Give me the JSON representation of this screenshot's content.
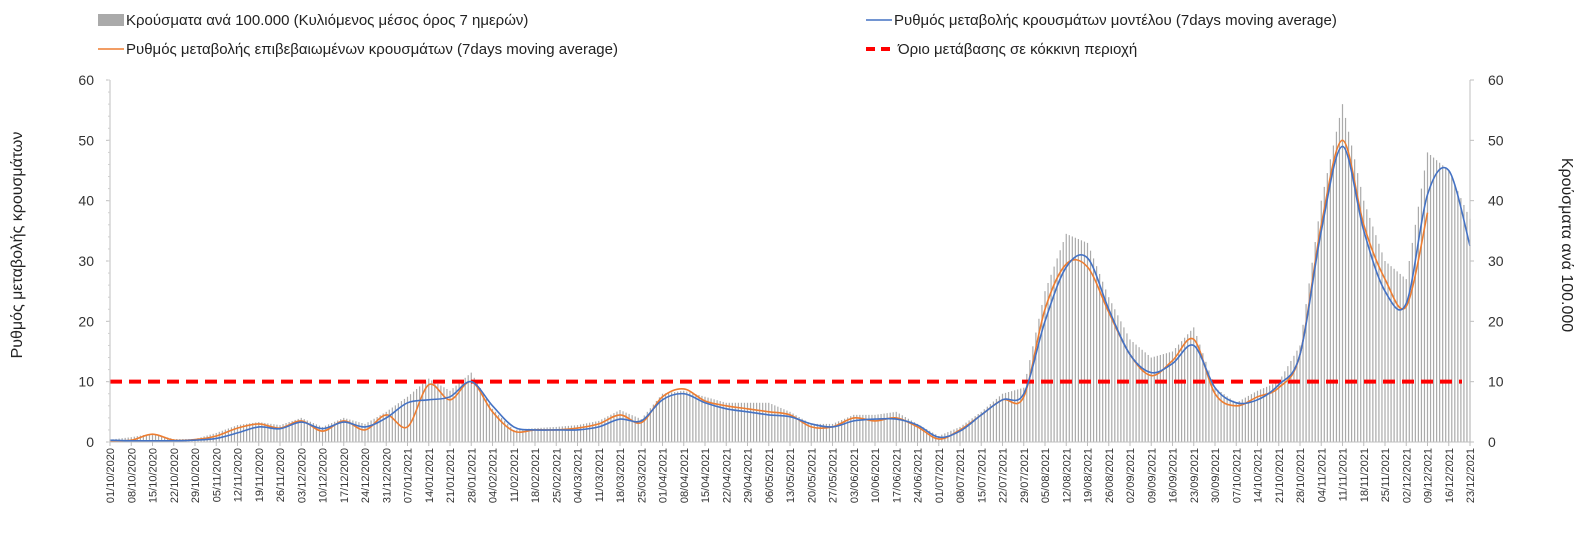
{
  "chart_data": {
    "type": "bar",
    "ylabel_left": "Ρυθμός μεταβολής κρουσμάτων",
    "ylabel_right": "Κρούσματα ανά 100.000",
    "ylim": [
      0,
      60
    ],
    "y_ticks": [
      0,
      10,
      20,
      30,
      40,
      50,
      60
    ],
    "x_range": [
      "2020-10-01",
      "2021-12-23"
    ],
    "x_tick_labels": [
      "01/10/2020",
      "08/10/2020",
      "15/10/2020",
      "22/10/2020",
      "29/10/2020",
      "05/11/2020",
      "12/11/2020",
      "19/11/2020",
      "26/11/2020",
      "03/12/2020",
      "10/12/2020",
      "17/12/2020",
      "24/12/2020",
      "31/12/2020",
      "07/01/2021",
      "14/01/2021",
      "21/01/2021",
      "28/01/2021",
      "04/02/2021",
      "11/02/2021",
      "18/02/2021",
      "25/02/2021",
      "04/03/2021",
      "11/03/2021",
      "18/03/2021",
      "25/03/2021",
      "01/04/2021",
      "08/04/2021",
      "15/04/2021",
      "22/04/2021",
      "29/04/2021",
      "06/05/2021",
      "13/05/2021",
      "20/05/2021",
      "27/05/2021",
      "03/06/2021",
      "10/06/2021",
      "17/06/2021",
      "24/06/2021",
      "01/07/2021",
      "08/07/2021",
      "15/07/2021",
      "22/07/2021",
      "29/07/2021",
      "05/08/2021",
      "12/08/2021",
      "19/08/2021",
      "26/08/2021",
      "02/09/2021",
      "09/09/2021",
      "16/09/2021",
      "23/09/2021",
      "30/09/2021",
      "07/10/2021",
      "14/10/2021",
      "21/10/2021",
      "28/10/2021",
      "04/11/2021",
      "11/11/2021",
      "18/11/2021",
      "25/11/2021",
      "02/12/2021",
      "09/12/2021",
      "16/12/2021",
      "23/12/2021"
    ],
    "grid": false,
    "legend_position": "top",
    "threshold": 10,
    "series": [
      {
        "name": "Κρούσματα ανά 100.000 (Κυλιόμενος μέσος όρος 7 ημερών)",
        "kind": "bar",
        "color": "#aaaaaa",
        "x": [
          "2020-10-01",
          "2020-10-08",
          "2020-10-15",
          "2020-10-22",
          "2020-10-29",
          "2020-11-05",
          "2020-11-12",
          "2020-11-19",
          "2020-11-26",
          "2020-12-03",
          "2020-12-10",
          "2020-12-17",
          "2020-12-24",
          "2020-12-31",
          "2021-01-07",
          "2021-01-14",
          "2021-01-21",
          "2021-01-28",
          "2021-02-04",
          "2021-02-11",
          "2021-02-18",
          "2021-02-25",
          "2021-03-04",
          "2021-03-11",
          "2021-03-18",
          "2021-03-25",
          "2021-04-01",
          "2021-04-08",
          "2021-04-15",
          "2021-04-22",
          "2021-04-29",
          "2021-05-06",
          "2021-05-13",
          "2021-05-20",
          "2021-05-27",
          "2021-06-03",
          "2021-06-10",
          "2021-06-17",
          "2021-06-24",
          "2021-07-01",
          "2021-07-08",
          "2021-07-15",
          "2021-07-22",
          "2021-07-29",
          "2021-08-05",
          "2021-08-12",
          "2021-08-19",
          "2021-08-26",
          "2021-09-02",
          "2021-09-09",
          "2021-09-16",
          "2021-09-23",
          "2021-09-30",
          "2021-10-07",
          "2021-10-14",
          "2021-10-21",
          "2021-10-28",
          "2021-11-04",
          "2021-11-11",
          "2021-11-18",
          "2021-11-25",
          "2021-12-02",
          "2021-12-09",
          "2021-12-16",
          "2021-12-23"
        ],
        "values": [
          0.4,
          0.8,
          1.4,
          0.5,
          0.5,
          1.5,
          2.8,
          3.3,
          2.8,
          4.0,
          2.5,
          4.0,
          3.0,
          5.0,
          7.5,
          10.5,
          8.5,
          11.5,
          5.5,
          2.0,
          2.3,
          2.5,
          2.8,
          3.5,
          5.3,
          3.8,
          8.0,
          8.5,
          7.5,
          6.5,
          6.5,
          6.5,
          5.0,
          3.0,
          3.0,
          4.5,
          4.5,
          5.0,
          3.0,
          1.0,
          2.5,
          5.0,
          8.0,
          9.0,
          25.0,
          34.5,
          33.0,
          24.0,
          17.0,
          14.0,
          15.0,
          19.0,
          9.0,
          6.5,
          8.5,
          10.0,
          16.0,
          40.0,
          56.0,
          40.0,
          30.0,
          27.0,
          48.0,
          45.0,
          37.0
        ]
      },
      {
        "name": "Ρυθμός μεταβολής επιβεβαιωμένων κρουσμάτων (7days moving average)",
        "kind": "line",
        "color": "#ed7d31",
        "x": [
          "2020-10-01",
          "2020-10-08",
          "2020-10-15",
          "2020-10-22",
          "2020-10-29",
          "2020-11-05",
          "2020-11-12",
          "2020-11-19",
          "2020-11-26",
          "2020-12-03",
          "2020-12-10",
          "2020-12-17",
          "2020-12-24",
          "2020-12-31",
          "2021-01-07",
          "2021-01-14",
          "2021-01-21",
          "2021-01-28",
          "2021-02-04",
          "2021-02-11",
          "2021-02-18",
          "2021-02-25",
          "2021-03-04",
          "2021-03-11",
          "2021-03-18",
          "2021-03-25",
          "2021-04-01",
          "2021-04-08",
          "2021-04-15",
          "2021-04-22",
          "2021-04-29",
          "2021-05-06",
          "2021-05-13",
          "2021-05-20",
          "2021-05-27",
          "2021-06-03",
          "2021-06-10",
          "2021-06-17",
          "2021-06-24",
          "2021-07-01",
          "2021-07-08",
          "2021-07-15",
          "2021-07-22",
          "2021-07-29",
          "2021-08-05",
          "2021-08-12",
          "2021-08-19",
          "2021-08-26",
          "2021-09-02",
          "2021-09-09",
          "2021-09-16",
          "2021-09-23",
          "2021-09-30",
          "2021-10-07",
          "2021-10-14",
          "2021-10-21",
          "2021-10-28",
          "2021-11-04",
          "2021-11-11",
          "2021-11-18",
          "2021-11-25",
          "2021-12-02",
          "2021-12-09",
          "2021-12-16",
          "2021-12-23"
        ],
        "values": [
          0.2,
          0.3,
          1.3,
          0.3,
          0.4,
          1.0,
          2.3,
          3.0,
          2.3,
          3.5,
          1.8,
          3.5,
          2.0,
          4.5,
          2.5,
          9.5,
          7.0,
          10.0,
          5.0,
          1.8,
          2.0,
          2.0,
          2.3,
          3.0,
          4.5,
          3.2,
          7.5,
          8.8,
          6.8,
          6.0,
          5.5,
          5.0,
          4.5,
          2.5,
          2.5,
          4.0,
          3.5,
          4.0,
          2.5,
          0.5,
          2.0,
          4.5,
          7.0,
          7.5,
          22.0,
          29.5,
          29.0,
          21.5,
          14.5,
          11.0,
          13.5,
          17.0,
          8.0,
          6.0,
          7.5,
          9.0,
          14.5,
          36.0,
          50.0,
          36.0,
          27.0,
          22.5,
          38.0,
          null,
          null
        ]
      },
      {
        "name": "Ρυθμός μεταβολής κρουσμάτων μοντέλου (7days moving average)",
        "kind": "line",
        "color": "#4472c4",
        "x": [
          "2020-10-01",
          "2020-10-08",
          "2020-10-15",
          "2020-10-22",
          "2020-10-29",
          "2020-11-05",
          "2020-11-12",
          "2020-11-19",
          "2020-11-26",
          "2020-12-03",
          "2020-12-10",
          "2020-12-17",
          "2020-12-24",
          "2020-12-31",
          "2021-01-07",
          "2021-01-14",
          "2021-01-21",
          "2021-01-28",
          "2021-02-04",
          "2021-02-11",
          "2021-02-18",
          "2021-02-25",
          "2021-03-04",
          "2021-03-11",
          "2021-03-18",
          "2021-03-25",
          "2021-04-01",
          "2021-04-08",
          "2021-04-15",
          "2021-04-22",
          "2021-04-29",
          "2021-05-06",
          "2021-05-13",
          "2021-05-20",
          "2021-05-27",
          "2021-06-03",
          "2021-06-10",
          "2021-06-17",
          "2021-06-24",
          "2021-07-01",
          "2021-07-08",
          "2021-07-15",
          "2021-07-22",
          "2021-07-29",
          "2021-08-05",
          "2021-08-12",
          "2021-08-19",
          "2021-08-26",
          "2021-09-02",
          "2021-09-09",
          "2021-09-16",
          "2021-09-23",
          "2021-09-30",
          "2021-10-07",
          "2021-10-14",
          "2021-10-21",
          "2021-10-28",
          "2021-11-04",
          "2021-11-11",
          "2021-11-18",
          "2021-11-25",
          "2021-12-02",
          "2021-12-09",
          "2021-12-16",
          "2021-12-23"
        ],
        "values": [
          0.3,
          0.2,
          0.2,
          0.2,
          0.3,
          0.6,
          1.5,
          2.5,
          2.2,
          3.3,
          2.2,
          3.3,
          2.5,
          4.0,
          6.5,
          7.0,
          7.5,
          10.0,
          6.0,
          2.5,
          2.0,
          2.0,
          2.0,
          2.5,
          3.8,
          3.5,
          7.0,
          8.0,
          6.5,
          5.5,
          5.0,
          4.5,
          4.2,
          3.0,
          2.5,
          3.5,
          3.8,
          3.8,
          2.8,
          0.8,
          1.8,
          4.5,
          7.0,
          8.0,
          20.0,
          29.0,
          30.5,
          22.0,
          14.5,
          11.5,
          13.0,
          16.0,
          9.0,
          6.5,
          7.0,
          9.5,
          14.5,
          35.0,
          49.0,
          35.0,
          25.0,
          23.0,
          41.0,
          45.0,
          32.5
        ]
      },
      {
        "name": "Όριο μετάβασης σε κόκκινη περιοχή",
        "kind": "threshold",
        "color": "#ff0000",
        "value": 10
      }
    ]
  }
}
